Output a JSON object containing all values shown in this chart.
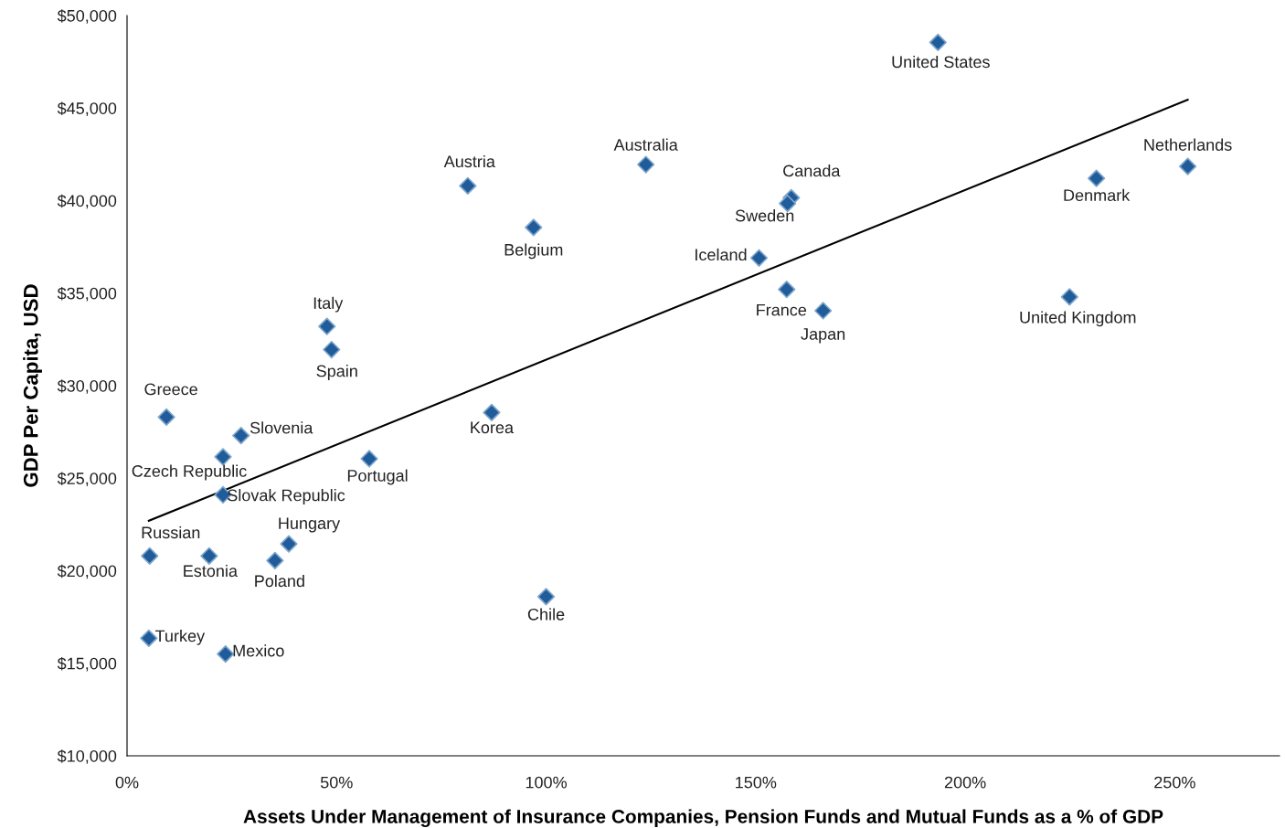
{
  "chart_data": {
    "type": "scatter",
    "xlabel": "Assets Under Management of Insurance Companies, Pension Funds and Mutual Funds as a % of GDP",
    "ylabel": "GDP Per Capita, USD",
    "xlim": [
      0,
      275
    ],
    "ylim": [
      10000,
      50000
    ],
    "xticks": [
      {
        "value": 0,
        "label": "0%"
      },
      {
        "value": 50,
        "label": "50%"
      },
      {
        "value": 100,
        "label": "100%"
      },
      {
        "value": 150,
        "label": "150%"
      },
      {
        "value": 200,
        "label": "200%"
      },
      {
        "value": 250,
        "label": "250%"
      }
    ],
    "yticks": [
      {
        "value": 10000,
        "label": "$10,000"
      },
      {
        "value": 15000,
        "label": "$15,000"
      },
      {
        "value": 20000,
        "label": "$20,000"
      },
      {
        "value": 25000,
        "label": "$25,000"
      },
      {
        "value": 30000,
        "label": "$30,000"
      },
      {
        "value": 35000,
        "label": "$35,000"
      },
      {
        "value": 40000,
        "label": "$40,000"
      },
      {
        "value": 45000,
        "label": "$45,000"
      },
      {
        "value": 50000,
        "label": "$50,000"
      }
    ],
    "grid": false,
    "legend": false,
    "series": [
      {
        "marker": "diamond",
        "color": "#1f5c99",
        "x": [
          193.5,
          253.1,
          231.3,
          224.9,
          123.8,
          81.3,
          97.0,
          158.5,
          157.6,
          150.8,
          157.4,
          166.1,
          47.7,
          48.8,
          87.0,
          9.4,
          27.2,
          22.9,
          57.8,
          22.9,
          38.6,
          5.4,
          19.6,
          35.3,
          100.0,
          5.2,
          23.5
        ],
        "values": [
          48550,
          41850,
          41200,
          34800,
          41950,
          40800,
          38550,
          40150,
          39850,
          36900,
          35200,
          34050,
          33200,
          31950,
          28550,
          28300,
          27300,
          26150,
          26050,
          24100,
          21450,
          20800,
          20800,
          20550,
          18600,
          16350,
          15500
        ]
      },
      {
        "type": "line",
        "marker": "none",
        "color": "#000000",
        "x": [
          5.2,
          253.1
        ],
        "values": [
          22700,
          45450
        ]
      }
    ],
    "annotations": [
      {
        "text": "United States",
        "x": 193.5,
        "y": 48550
      },
      {
        "text": "Netherlands",
        "x": 253.1,
        "y": 41850
      },
      {
        "text": "Denmark",
        "x": 231.3,
        "y": 41200
      },
      {
        "text": "United Kingdom",
        "x": 224.9,
        "y": 34800
      },
      {
        "text": "Australia",
        "x": 123.8,
        "y": 41950
      },
      {
        "text": "Austria",
        "x": 81.3,
        "y": 40800
      },
      {
        "text": "Belgium",
        "x": 97.0,
        "y": 38550
      },
      {
        "text": "Canada",
        "x": 158.5,
        "y": 40150
      },
      {
        "text": "Sweden",
        "x": 157.6,
        "y": 39850
      },
      {
        "text": "Iceland",
        "x": 150.8,
        "y": 36900
      },
      {
        "text": "France",
        "x": 157.4,
        "y": 35200
      },
      {
        "text": "Japan",
        "x": 166.1,
        "y": 34050
      },
      {
        "text": "Italy",
        "x": 47.7,
        "y": 33200
      },
      {
        "text": "Spain",
        "x": 48.8,
        "y": 31950
      },
      {
        "text": "Korea",
        "x": 87.0,
        "y": 28550
      },
      {
        "text": "Greece",
        "x": 9.4,
        "y": 28300
      },
      {
        "text": "Slovenia",
        "x": 27.2,
        "y": 27300
      },
      {
        "text": "Czech Republic",
        "x": 22.9,
        "y": 26150
      },
      {
        "text": "Portugal",
        "x": 57.8,
        "y": 26050
      },
      {
        "text": "Slovak Republic",
        "x": 22.9,
        "y": 24100
      },
      {
        "text": "Hungary",
        "x": 38.6,
        "y": 21450
      },
      {
        "text": "Russian",
        "x": 5.4,
        "y": 20800
      },
      {
        "text": "Estonia",
        "x": 19.6,
        "y": 20800
      },
      {
        "text": "Poland",
        "x": 35.3,
        "y": 20550
      },
      {
        "text": "Chile",
        "x": 100.0,
        "y": 18600
      },
      {
        "text": "Turkey",
        "x": 5.2,
        "y": 16350
      },
      {
        "text": "Mexico",
        "x": 23.5,
        "y": 15500
      }
    ]
  }
}
